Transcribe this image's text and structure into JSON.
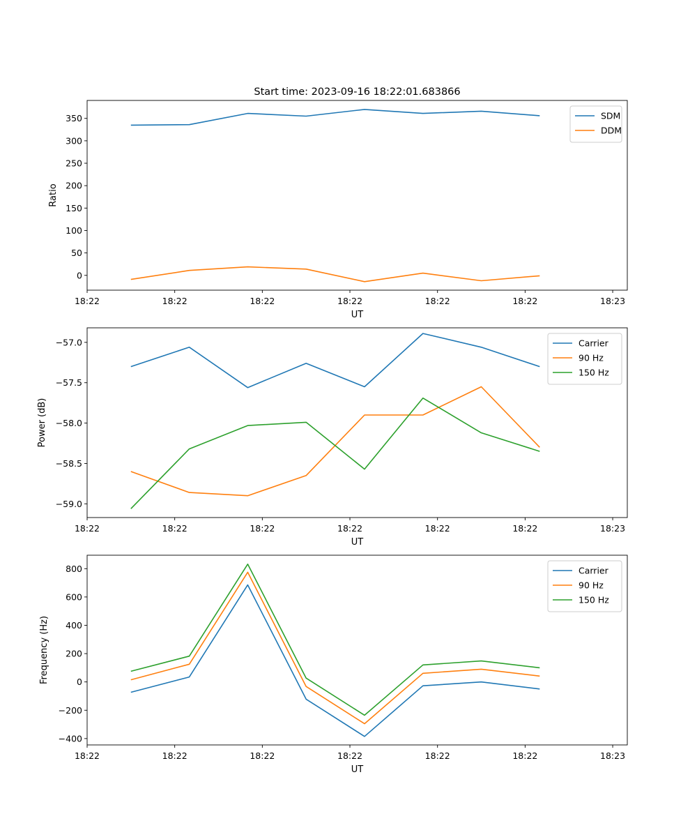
{
  "figure_title": "Start time: 2023-09-16 18:22:01.683866",
  "colors": {
    "blue": "#1f77b4",
    "orange": "#ff7f0e",
    "green": "#2ca02c"
  },
  "chart_data": [
    {
      "type": "line",
      "title": "Start time: 2023-09-16 18:22:01.683866",
      "xlabel": "UT",
      "ylabel": "Ratio",
      "xlim": [
        -0.75,
        8.5
      ],
      "ylim": [
        -33,
        390
      ],
      "x": [
        0,
        1,
        2,
        3,
        4,
        5,
        6,
        7
      ],
      "xticks": [
        -0.75,
        0.75,
        2.25,
        3.75,
        5.25,
        6.75,
        8.25
      ],
      "xtick_labels": [
        "18:22",
        "18:22",
        "18:22",
        "18:22",
        "18:22",
        "18:22",
        "18:23"
      ],
      "yticks": [
        0,
        50,
        100,
        150,
        200,
        250,
        300,
        350
      ],
      "ytick_labels": [
        "0",
        "50",
        "100",
        "150",
        "200",
        "250",
        "300",
        "350"
      ],
      "legend_position": "top-right",
      "series": [
        {
          "name": "SDM",
          "color": "#1f77b4",
          "values": [
            335,
            336,
            361,
            355,
            370,
            361,
            366,
            356
          ]
        },
        {
          "name": "DDM",
          "color": "#ff7f0e",
          "values": [
            -9,
            11,
            19,
            14,
            -14,
            5,
            -12,
            -1
          ]
        }
      ]
    },
    {
      "type": "line",
      "title": "",
      "xlabel": "UT",
      "ylabel": "Power (dB)",
      "xlim": [
        -0.75,
        8.5
      ],
      "ylim": [
        -59.17,
        -56.82
      ],
      "x": [
        0,
        1,
        2,
        3,
        4,
        5,
        6,
        7
      ],
      "xticks": [
        -0.75,
        0.75,
        2.25,
        3.75,
        5.25,
        6.75,
        8.25
      ],
      "xtick_labels": [
        "18:22",
        "18:22",
        "18:22",
        "18:22",
        "18:22",
        "18:22",
        "18:23"
      ],
      "yticks": [
        -59.0,
        -58.5,
        -58.0,
        -57.5,
        -57.0
      ],
      "ytick_labels": [
        "−59.0",
        "−58.5",
        "−58.0",
        "−57.5",
        "−57.0"
      ],
      "legend_position": "top-right",
      "series": [
        {
          "name": "Carrier",
          "color": "#1f77b4",
          "values": [
            -57.3,
            -57.06,
            -57.56,
            -57.26,
            -57.55,
            -56.89,
            -57.06,
            -57.3
          ]
        },
        {
          "name": "90 Hz",
          "color": "#ff7f0e",
          "values": [
            -58.6,
            -58.86,
            -58.9,
            -58.65,
            -57.9,
            -57.9,
            -57.55,
            -58.3
          ]
        },
        {
          "name": "150 Hz",
          "color": "#2ca02c",
          "values": [
            -59.06,
            -58.32,
            -58.03,
            -57.99,
            -58.57,
            -57.69,
            -58.12,
            -58.35
          ]
        }
      ]
    },
    {
      "type": "line",
      "title": "",
      "xlabel": "UT",
      "ylabel": "Frequency (Hz)",
      "xlim": [
        -0.75,
        8.5
      ],
      "ylim": [
        -445,
        895
      ],
      "x": [
        0,
        1,
        2,
        3,
        4,
        5,
        6,
        7
      ],
      "xticks": [
        -0.75,
        0.75,
        2.25,
        3.75,
        5.25,
        6.75,
        8.25
      ],
      "xtick_labels": [
        "18:22",
        "18:22",
        "18:22",
        "18:22",
        "18:22",
        "18:22",
        "18:23"
      ],
      "yticks": [
        -400,
        -200,
        0,
        200,
        400,
        600,
        800
      ],
      "ytick_labels": [
        "−400",
        "−200",
        "0",
        "200",
        "400",
        "600",
        "800"
      ],
      "legend_position": "top-right",
      "series": [
        {
          "name": "Carrier",
          "color": "#1f77b4",
          "values": [
            -73,
            35,
            685,
            -122,
            -385,
            -27,
            0,
            -50
          ]
        },
        {
          "name": "90 Hz",
          "color": "#ff7f0e",
          "values": [
            15,
            125,
            775,
            -32,
            -295,
            61,
            90,
            41
          ]
        },
        {
          "name": "150 Hz",
          "color": "#2ca02c",
          "values": [
            75,
            182,
            832,
            27,
            -235,
            120,
            148,
            100
          ]
        }
      ]
    }
  ]
}
